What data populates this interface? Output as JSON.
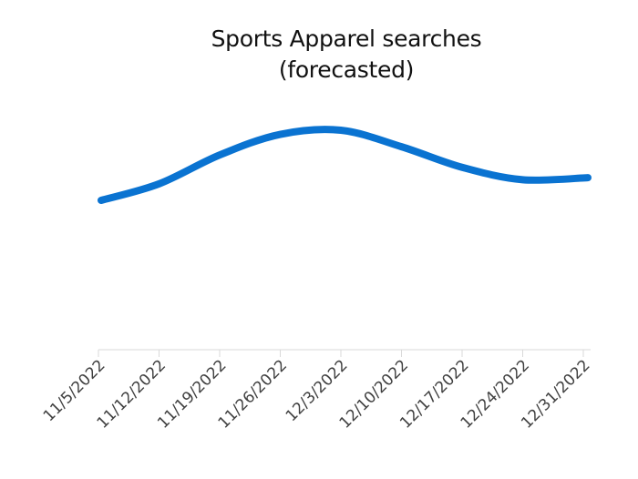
{
  "chart_data": {
    "type": "line",
    "title": "Sports Apparel searches (forecasted)",
    "title_lines": [
      "Sports Apparel searches",
      "(forecasted)"
    ],
    "xlabel": "",
    "ylabel": "",
    "categories": [
      "11/5/2022",
      "11/12/2022",
      "11/19/2022",
      "11/26/2022",
      "12/3/2022",
      "12/10/2022",
      "12/17/2022",
      "12/24/2022",
      "12/31/2022"
    ],
    "series": [
      {
        "name": "Sports Apparel searches (forecasted)",
        "values": [
          48,
          52,
          59,
          64,
          65,
          61,
          56,
          53,
          53.5
        ],
        "color": "#0a73d1"
      }
    ],
    "y_axis_visible": false,
    "grid": false,
    "legend": "none"
  }
}
